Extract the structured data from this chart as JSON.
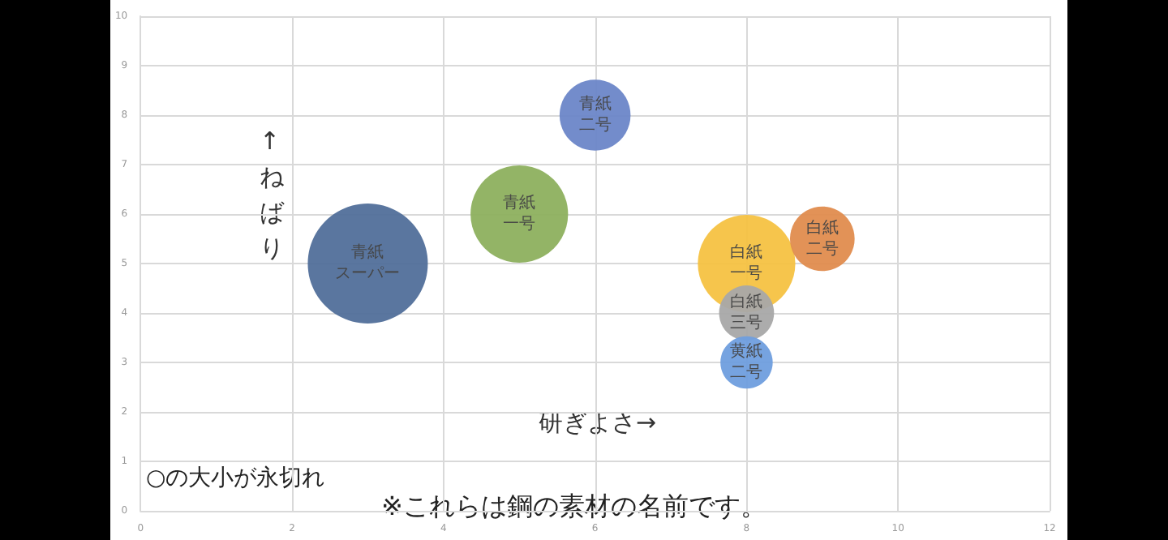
{
  "chart_data": {
    "type": "bubble",
    "xlabel": "研ぎよさ→",
    "ylabel": "↑ねばり",
    "annotations": [
      "○の大小が永切れ",
      "※これらは鋼の素材の名前です。"
    ],
    "xlim": [
      0,
      12
    ],
    "xticks": [
      0,
      2,
      4,
      6,
      8,
      10,
      12
    ],
    "ylim": [
      0,
      10
    ],
    "yticks": [
      0,
      1,
      2,
      3,
      4,
      5,
      6,
      7,
      8,
      9,
      10
    ],
    "grid": true,
    "legend": false,
    "series": [
      {
        "name": "青紙スーパー",
        "color": "#516f9a",
        "x": [
          3
        ],
        "values": [
          5
        ],
        "sizes": [
          1
        ]
      },
      {
        "name": "青紙一号",
        "color": "#8db05e",
        "x": [
          5
        ],
        "values": [
          6
        ],
        "sizes": [
          0.66
        ]
      },
      {
        "name": "青紙二号",
        "color": "#6c86c8",
        "x": [
          6
        ],
        "values": [
          8
        ],
        "sizes": [
          0.35
        ]
      },
      {
        "name": "白紙一号",
        "color": "#f5c242",
        "x": [
          8
        ],
        "values": [
          5
        ],
        "sizes": [
          0.66
        ]
      },
      {
        "name": "白紙二号",
        "color": "#e08c4e",
        "x": [
          9
        ],
        "values": [
          5.5
        ],
        "sizes": [
          0.29
        ]
      },
      {
        "name": "白紙三号",
        "color": "#a8a8a8",
        "x": [
          8
        ],
        "values": [
          4
        ],
        "sizes": [
          0.21
        ]
      },
      {
        "name": "黄紙二号",
        "color": "#6f9ede",
        "x": [
          8
        ],
        "values": [
          3
        ],
        "sizes": [
          0.19
        ]
      }
    ]
  }
}
